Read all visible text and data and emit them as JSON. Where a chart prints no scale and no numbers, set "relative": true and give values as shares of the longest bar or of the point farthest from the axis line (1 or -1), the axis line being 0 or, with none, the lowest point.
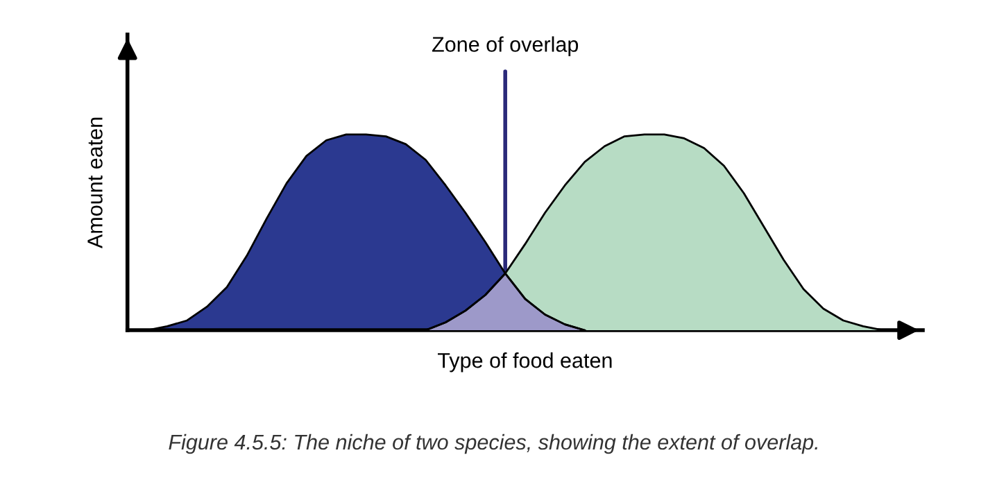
{
  "chart_data": {
    "type": "area",
    "relative": true,
    "xlabel": "Type of food eaten",
    "ylabel": "Amount eaten",
    "categories": [
      null,
      null,
      null,
      null,
      null,
      null,
      null,
      null,
      null,
      null,
      null,
      null,
      null,
      null,
      null,
      null,
      null,
      null,
      null,
      null,
      null,
      null,
      null,
      null,
      null,
      null,
      null,
      null,
      null,
      null,
      null,
      null,
      null,
      null,
      null,
      null,
      null,
      null,
      null,
      null,
      null
    ],
    "series": [
      {
        "color": "#2b3990",
        "values": [
          null,
          0,
          0.02,
          0.05,
          0.12,
          0.22,
          0.38,
          0.57,
          0.75,
          0.89,
          0.97,
          1,
          1,
          0.99,
          0.95,
          0.87,
          0.74,
          0.6,
          0.45,
          0.29,
          0.16,
          0.08,
          0.03,
          0,
          null,
          null,
          null,
          null,
          null,
          null,
          null,
          null,
          null,
          null,
          null,
          null,
          null,
          null,
          null,
          null,
          null
        ]
      },
      {
        "color": "#b7dcc4",
        "values": [
          null,
          null,
          null,
          null,
          null,
          null,
          null,
          null,
          null,
          null,
          null,
          null,
          null,
          null,
          null,
          0,
          0.04,
          0.1,
          0.18,
          0.29,
          0.44,
          0.6,
          0.74,
          0.86,
          0.94,
          0.99,
          1,
          1,
          0.98,
          0.93,
          0.84,
          0.7,
          0.53,
          0.36,
          0.21,
          0.11,
          0.05,
          0.02,
          0,
          null,
          null
        ]
      },
      {
        "color": "#9d99c9",
        "values": [
          null,
          null,
          null,
          null,
          null,
          null,
          null,
          null,
          null,
          null,
          null,
          null,
          null,
          null,
          null,
          0,
          0.04,
          0.1,
          0.18,
          0.29,
          0.16,
          0.08,
          0.03,
          0,
          null,
          null,
          null,
          null,
          null,
          null,
          null,
          null,
          null,
          null,
          null,
          null,
          null,
          null,
          null,
          null,
          null
        ]
      }
    ],
    "annotations": [
      {
        "text": "Zone of overlap",
        "y": 0.29
      },
      "Figure 4.5.5: The niche of two species, showing the extent of overlap."
    ]
  }
}
